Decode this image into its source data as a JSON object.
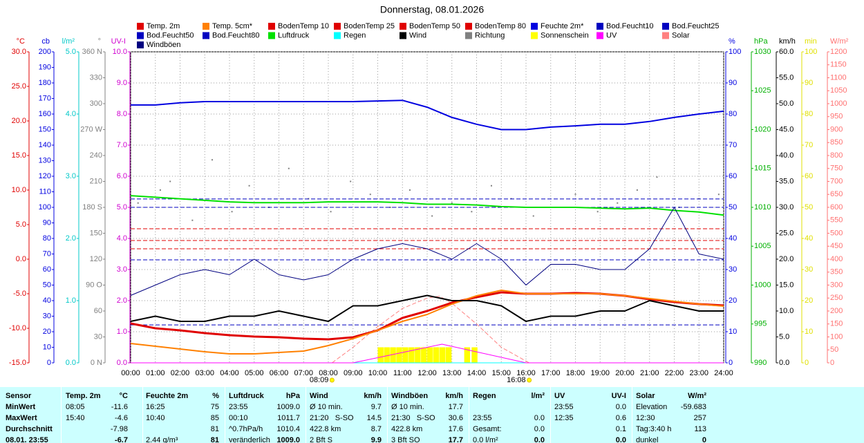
{
  "chart_data": {
    "type": "line",
    "title": "Donnerstag, 08.01.2026",
    "xlim": [
      0,
      24
    ],
    "xticks": [
      {
        "value": 0,
        "label": "00:00"
      },
      {
        "value": 1,
        "label": "01:00"
      },
      {
        "value": 2,
        "label": "02:00"
      },
      {
        "value": 3,
        "label": "03:00"
      },
      {
        "value": 4,
        "label": "04:00"
      },
      {
        "value": 5,
        "label": "05:00"
      },
      {
        "value": 6,
        "label": "06:00"
      },
      {
        "value": 7,
        "label": "07:00"
      },
      {
        "value": 8,
        "label": "08:00"
      },
      {
        "value": 9,
        "label": "09:00"
      },
      {
        "value": 10,
        "label": "10:00"
      },
      {
        "value": 11,
        "label": "11:00"
      },
      {
        "value": 12,
        "label": "12:00"
      },
      {
        "value": 13,
        "label": "13:00"
      },
      {
        "value": 14,
        "label": "14:00"
      },
      {
        "value": 15,
        "label": "15:00"
      },
      {
        "value": 16,
        "label": "16:00"
      },
      {
        "value": 17,
        "label": "17:00"
      },
      {
        "value": 18,
        "label": "18:00"
      },
      {
        "value": 19,
        "label": "19:00"
      },
      {
        "value": 20,
        "label": "20:00"
      },
      {
        "value": 21,
        "label": "21:00"
      },
      {
        "value": 22,
        "label": "22:00"
      },
      {
        "value": 23,
        "label": "23:00"
      },
      {
        "value": 24,
        "label": "24:00"
      }
    ],
    "grid": true,
    "axes": [
      {
        "label": "°C",
        "color": "#e00000",
        "lim": [
          -15,
          30
        ],
        "ticks": [
          {
            "value": -15,
            "label": "-15.0"
          },
          {
            "value": -10,
            "label": "-10.0"
          },
          {
            "value": -5,
            "label": "-5.0"
          },
          {
            "value": 0,
            "label": "0.0"
          },
          {
            "value": 5,
            "label": "5.0"
          },
          {
            "value": 10,
            "label": "10.0"
          },
          {
            "value": 15,
            "label": "15.0"
          },
          {
            "value": 20,
            "label": "20.0"
          },
          {
            "value": 25,
            "label": "25.0"
          },
          {
            "value": 30,
            "label": "30.0"
          }
        ]
      },
      {
        "label": "cb",
        "color": "#0000e0",
        "lim": [
          0,
          200
        ],
        "ticks": [
          0,
          10,
          20,
          30,
          40,
          50,
          60,
          70,
          80,
          90,
          100,
          110,
          120,
          130,
          140,
          150,
          160,
          170,
          180,
          190,
          200
        ]
      },
      {
        "label": "l/m²",
        "color": "#00c8c8",
        "lim": [
          0,
          5
        ],
        "ticks": [
          {
            "value": 0,
            "label": "0.0"
          },
          {
            "value": 1,
            "label": "1.0"
          },
          {
            "value": 2,
            "label": "2.0"
          },
          {
            "value": 3,
            "label": "3.0"
          },
          {
            "value": 4,
            "label": "4.0"
          },
          {
            "value": 5,
            "label": "5.0"
          }
        ]
      },
      {
        "label": "°",
        "color": "#808080",
        "lim": [
          0,
          360
        ],
        "ticks": [
          {
            "value": 0,
            "label": "0 N"
          },
          30,
          60,
          {
            "value": 90,
            "label": "90 O"
          },
          120,
          150,
          {
            "value": 180,
            "label": "180 S"
          },
          210,
          240,
          {
            "value": 270,
            "label": "270 W"
          },
          300,
          330,
          {
            "value": 360,
            "label": "360 N"
          }
        ]
      },
      {
        "label": "UV-I",
        "color": "#d000d0",
        "lim": [
          0,
          10
        ],
        "ticks": [
          {
            "value": 0,
            "label": "0.0"
          },
          {
            "value": 1,
            "label": "1.0"
          },
          {
            "value": 2,
            "label": "2.0"
          },
          {
            "value": 3,
            "label": "3.0"
          },
          {
            "value": 4,
            "label": "4.0"
          },
          {
            "value": 5,
            "label": "5.0"
          },
          {
            "value": 6,
            "label": "6.0"
          },
          {
            "value": 7,
            "label": "7.0"
          },
          {
            "value": 8,
            "label": "8.0"
          },
          {
            "value": 9,
            "label": "9.0"
          },
          {
            "value": 10,
            "label": "10.0"
          }
        ]
      },
      {
        "label": "%",
        "color": "#0000e0",
        "lim": [
          0,
          100
        ],
        "ticks": [
          0,
          10,
          20,
          30,
          40,
          50,
          60,
          70,
          80,
          90,
          100
        ]
      },
      {
        "label": "hPa",
        "color": "#00b000",
        "lim": [
          990,
          1030
        ],
        "ticks": [
          990,
          995,
          1000,
          1005,
          1010,
          1015,
          1020,
          1025,
          1030
        ]
      },
      {
        "label": "km/h",
        "color": "#000000",
        "lim": [
          0,
          60
        ],
        "ticks": [
          {
            "value": 0,
            "label": "0.0"
          },
          {
            "value": 5,
            "label": "5.0"
          },
          {
            "value": 10,
            "label": "10.0"
          },
          {
            "value": 15,
            "label": "15.0"
          },
          {
            "value": 20,
            "label": "20.0"
          },
          {
            "value": 25,
            "label": "25.0"
          },
          {
            "value": 30,
            "label": "30.0"
          },
          {
            "value": 35,
            "label": "35.0"
          },
          {
            "value": 40,
            "label": "40.0"
          },
          {
            "value": 45,
            "label": "45.0"
          },
          {
            "value": 50,
            "label": "50.0"
          },
          {
            "value": 55,
            "label": "55.0"
          },
          {
            "value": 60,
            "label": "60.0"
          }
        ]
      },
      {
        "label": "min",
        "color": "#e0e000",
        "lim": [
          0,
          100
        ],
        "ticks": [
          0,
          10,
          20,
          30,
          40,
          50,
          60,
          70,
          80,
          90,
          100
        ]
      },
      {
        "label": "W/m²",
        "color": "#ff7070",
        "lim": [
          0,
          1200
        ],
        "ticks": [
          0,
          50,
          100,
          150,
          200,
          250,
          300,
          350,
          400,
          450,
          500,
          550,
          600,
          650,
          700,
          750,
          800,
          850,
          900,
          950,
          1000,
          1050,
          1100,
          1150,
          1200
        ]
      }
    ],
    "series": [
      {
        "name": "Temp. 2m",
        "color": "#e00000",
        "axis": 0,
        "style": "line",
        "width": 3,
        "x": [
          0,
          1,
          2,
          3,
          4,
          5,
          6,
          7,
          8,
          9,
          10,
          11,
          12,
          13,
          14,
          15,
          16,
          17,
          18,
          19,
          20,
          21,
          22,
          23,
          24
        ],
        "values": [
          -9.3,
          -10,
          -10.3,
          -10.7,
          -11,
          -11.2,
          -11.3,
          -11.5,
          -11.6,
          -11.3,
          -10.3,
          -8.5,
          -7.5,
          -6.3,
          -5.5,
          -4.8,
          -5,
          -5,
          -4.9,
          -5,
          -5.3,
          -5.8,
          -6.2,
          -6.5,
          -6.7
        ]
      },
      {
        "name": "Temp. 5cm*",
        "color": "#ff8000",
        "axis": 0,
        "style": "line",
        "width": 2,
        "x": [
          0,
          1,
          2,
          3,
          4,
          5,
          6,
          7,
          8,
          9,
          10,
          11,
          12,
          13,
          14,
          15,
          16,
          17,
          18,
          19,
          20,
          21,
          22,
          23,
          24
        ],
        "values": [
          -12.2,
          -12.6,
          -13,
          -13.4,
          -13.7,
          -13.7,
          -13.5,
          -13.3,
          -12.5,
          -11.5,
          -10.3,
          -9,
          -8,
          -6.5,
          -5.3,
          -4.5,
          -5,
          -5,
          -5,
          -5,
          -5.3,
          -5.7,
          -6.1,
          -6.5,
          -6.8
        ]
      },
      {
        "name": "BodenTemp 10",
        "color": "#e00000",
        "axis": 0,
        "style": "dashed",
        "width": 1,
        "x": [
          0,
          24
        ],
        "values": [
          4.4,
          4.4
        ]
      },
      {
        "name": "BodenTemp 25",
        "color": "#e00000",
        "axis": 0,
        "style": "dashed",
        "width": 1,
        "x": [
          0,
          24
        ],
        "values": [
          2.7,
          2.7
        ]
      },
      {
        "name": "BodenTemp 50",
        "color": "#e00000",
        "axis": 0,
        "style": "dashed",
        "width": 1,
        "x": [
          0,
          24
        ],
        "values": [
          1.5,
          1.5
        ]
      },
      {
        "name": "BodenTemp 80",
        "color": "#e00000",
        "axis": 0,
        "style": "dashed",
        "width": 1,
        "x": [
          0,
          24
        ],
        "values": [
          -0.1,
          -0.1
        ]
      },
      {
        "name": "Feuchte 2m*",
        "color": "#0000e0",
        "axis": 5,
        "style": "line",
        "width": 2,
        "x": [
          0,
          1,
          2,
          3,
          4,
          5,
          6,
          7,
          8,
          9,
          10,
          11,
          12,
          13,
          14,
          15,
          16,
          17,
          18,
          19,
          20,
          21,
          22,
          23,
          24
        ],
        "values": [
          82.9,
          82.9,
          83.6,
          84,
          84,
          84,
          84,
          84,
          84,
          84,
          84.2,
          84.4,
          82.2,
          78.9,
          76.7,
          75,
          75,
          75.8,
          76.2,
          76.7,
          76.7,
          77.6,
          78.9,
          80,
          80.9
        ]
      },
      {
        "name": "Bod.Feucht10",
        "color": "#0000c0",
        "axis": 5,
        "style": "dashed",
        "width": 1,
        "x": [
          0,
          24
        ],
        "values": [
          52.7,
          52.7
        ]
      },
      {
        "name": "Bod.Feucht25",
        "color": "#0000c0",
        "axis": 5,
        "style": "dashed",
        "width": 1,
        "x": [
          0,
          24
        ],
        "values": [
          50,
          50
        ]
      },
      {
        "name": "Bod.Feucht50",
        "color": "#0000c0",
        "axis": 5,
        "style": "dashed",
        "width": 1,
        "x": [
          0,
          24
        ],
        "values": [
          33.1,
          33.1
        ]
      },
      {
        "name": "Bod.Feucht80",
        "color": "#0000c0",
        "axis": 5,
        "style": "dashed",
        "width": 1,
        "x": [
          0,
          24
        ],
        "values": [
          12.2,
          12.2
        ]
      },
      {
        "name": "Luftdruck",
        "color": "#00e000",
        "axis": 6,
        "style": "line",
        "width": 2,
        "x": [
          0,
          1,
          2,
          3,
          4,
          5,
          6,
          7,
          8,
          9,
          10,
          11,
          12,
          13,
          14,
          15,
          16,
          17,
          18,
          19,
          20,
          21,
          22,
          23,
          24
        ],
        "values": [
          1011.5,
          1011.3,
          1011.1,
          1010.9,
          1010.7,
          1010.6,
          1010.6,
          1010.6,
          1010.7,
          1010.7,
          1010.7,
          1010.6,
          1010.4,
          1010.4,
          1010.3,
          1010.1,
          1010,
          1010,
          1010,
          1009.9,
          1009.8,
          1009.9,
          1009.6,
          1009.4,
          1009
        ]
      },
      {
        "name": "Regen",
        "color": "#00ffff",
        "axis": 2,
        "style": "line",
        "width": 1,
        "x": [
          0,
          24
        ],
        "values": [
          0,
          0
        ]
      },
      {
        "name": "Wind",
        "color": "#000000",
        "axis": 7,
        "style": "line",
        "width": 2,
        "x": [
          0,
          1,
          2,
          3,
          4,
          5,
          6,
          7,
          8,
          9,
          10,
          11,
          12,
          13,
          14,
          15,
          16,
          17,
          18,
          19,
          20,
          21,
          22,
          23,
          24
        ],
        "values": [
          8,
          9,
          8,
          8,
          9,
          9,
          10,
          9,
          8,
          11,
          11,
          12,
          13,
          12,
          12,
          11,
          8,
          9,
          9,
          10,
          10,
          12,
          11,
          10,
          10
        ]
      },
      {
        "name": "Richtung",
        "color": "#808080",
        "axis": 3,
        "style": "scatter",
        "width": 1,
        "x": [
          0.3,
          1.2,
          1.6,
          2.5,
          3.3,
          4.1,
          4.8,
          5.6,
          6.4,
          7.2,
          8.1,
          8.9,
          9.7,
          10.5,
          11.3,
          12.2,
          13,
          13.8,
          14.6,
          15.4,
          16.3,
          17.1,
          18,
          18.9,
          19.7,
          20.5,
          21.3,
          22.2,
          23,
          23.8
        ],
        "values": [
          185,
          200,
          210,
          165,
          235,
          175,
          205,
          180,
          225,
          190,
          175,
          210,
          195,
          180,
          200,
          170,
          185,
          175,
          205,
          190,
          170,
          180,
          195,
          175,
          185,
          200,
          215,
          180,
          190,
          195
        ]
      },
      {
        "name": "Sonnenschein",
        "color": "#ffff00",
        "axis": 8,
        "style": "bar",
        "width": 0.25,
        "x": [
          10,
          10.25,
          10.5,
          10.75,
          11,
          11.25,
          11.5,
          11.75,
          12,
          12.25,
          12.5,
          12.75,
          13.5,
          13.8
        ],
        "values": [
          5,
          5,
          5,
          5,
          5,
          5,
          5,
          5,
          5,
          5,
          5,
          5,
          5,
          5
        ]
      },
      {
        "name": "UV",
        "color": "#ff00ff",
        "axis": 4,
        "style": "line",
        "width": 1,
        "x": [
          0,
          9,
          12.6,
          16,
          24
        ],
        "values": [
          0,
          0,
          0.6,
          0,
          0
        ]
      },
      {
        "name": "Solar",
        "color": "#ff8080",
        "axis": 9,
        "style": "dashed",
        "width": 1,
        "x": [
          8.15,
          9,
          10,
          11,
          12,
          12.5,
          13,
          14,
          15,
          16.13
        ],
        "values": [
          0,
          60,
          140,
          210,
          250,
          257,
          230,
          150,
          60,
          0
        ]
      },
      {
        "name": "Windböen",
        "color": "#000080",
        "axis": 7,
        "style": "line",
        "width": 1,
        "x": [
          0,
          1,
          2,
          3,
          4,
          5,
          6,
          7,
          8,
          9,
          10,
          11,
          12,
          13,
          14,
          15,
          16,
          17,
          18,
          19,
          20,
          21,
          22,
          23,
          24
        ],
        "values": [
          13,
          15,
          17,
          18,
          17,
          20,
          17,
          16,
          17,
          20,
          22,
          23,
          22,
          20,
          23,
          20,
          15,
          19,
          19,
          18,
          18,
          22,
          30,
          21,
          20
        ]
      }
    ],
    "sun_events": [
      {
        "time": "08:09",
        "x": 8.15
      },
      {
        "time": "16:08",
        "x": 16.13
      }
    ]
  },
  "table": {
    "header": [
      "Sensor",
      "Temp. 2m",
      "°C",
      "Feuchte 2m",
      "%",
      "Luftdruck",
      "hPa",
      "Wind",
      "km/h",
      "Windböen",
      "km/h",
      "Regen",
      "l/m²",
      "UV",
      "UV-I",
      "Solar",
      "W/m²"
    ],
    "rows": [
      [
        "MinWert",
        "08:05",
        "-11.6",
        "16:25",
        "75",
        "23:55",
        "1009.0",
        "Ø 10 min.",
        "9.7",
        "Ø 10 min.",
        "17.7",
        null,
        null,
        "23:55",
        "0.0",
        "Elevation",
        "-59.683"
      ],
      [
        "MaxWert",
        "15:40",
        "-4.6",
        "10:40",
        "85",
        "00:10",
        "1011.7",
        "21:20   S-SO",
        "14.5",
        "21:30   S-SO",
        "30.6",
        "23:55",
        "0.0",
        "12:35",
        "0.6",
        "12:30",
        "257"
      ],
      [
        "Durchschnitt",
        null,
        "-7.98",
        null,
        "81",
        "^0.7hPa/h",
        "1010.4",
        "422.8 km",
        "8.7",
        "422.8 km",
        "17.6",
        "Gesamt:",
        "0.0",
        null,
        "0.1",
        "Tag:3:40 h",
        "113"
      ],
      [
        "08.01. 23:55",
        null,
        "-6.7",
        "2.44 g/m³",
        "81",
        "veränderlich",
        "1009.0",
        "2 Bft S",
        "9.9",
        "3 Bft SO",
        "17.7",
        "0.0 l/m²",
        "0.0",
        null,
        "0.0",
        "dunkel",
        "0"
      ]
    ]
  }
}
